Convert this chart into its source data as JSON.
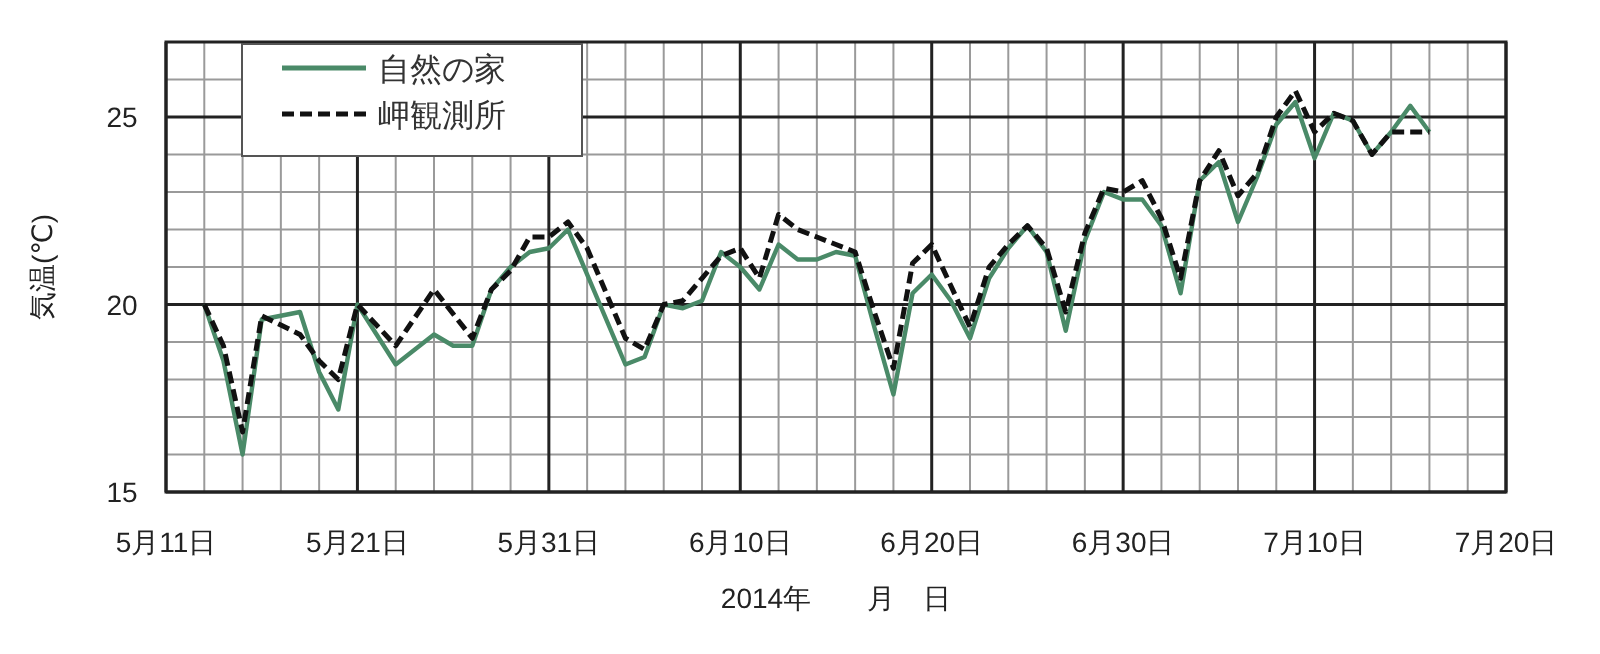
{
  "chart_data": {
    "type": "line",
    "ylabel": "気温(℃)",
    "xlabel": "2014年　　月　日",
    "xlim": [
      "2014-05-11",
      "2014-07-20"
    ],
    "xticks": [
      {
        "value": "2014-05-11",
        "label": "5月11日"
      },
      {
        "value": "2014-05-21",
        "label": "5月21日"
      },
      {
        "value": "2014-05-31",
        "label": "5月31日"
      },
      {
        "value": "2014-06-10",
        "label": "6月10日"
      },
      {
        "value": "2014-06-20",
        "label": "6月20日"
      },
      {
        "value": "2014-06-30",
        "label": "6月30日"
      },
      {
        "value": "2014-07-10",
        "label": "7月10日"
      },
      {
        "value": "2014-07-20",
        "label": "7月20日"
      }
    ],
    "ylim": [
      15,
      27
    ],
    "yticks": [
      15,
      20,
      25
    ],
    "grid": true,
    "legend": "top left",
    "series": [
      {
        "name": "自然の家",
        "color": "#4a8a68",
        "line_style": "solid",
        "x": [
          "2014-05-13",
          "2014-05-14",
          "2014-05-15",
          "2014-05-16",
          "2014-05-18",
          "2014-05-19",
          "2014-05-20",
          "2014-05-21",
          "2014-05-23",
          "2014-05-25",
          "2014-05-26",
          "2014-05-27",
          "2014-05-28",
          "2014-05-29",
          "2014-05-30",
          "2014-05-31",
          "2014-06-01",
          "2014-06-04",
          "2014-06-05",
          "2014-06-06",
          "2014-06-07",
          "2014-06-08",
          "2014-06-09",
          "2014-06-10",
          "2014-06-11",
          "2014-06-12",
          "2014-06-13",
          "2014-06-14",
          "2014-06-15",
          "2014-06-16",
          "2014-06-17",
          "2014-06-18",
          "2014-06-19",
          "2014-06-20",
          "2014-06-21",
          "2014-06-22",
          "2014-06-23",
          "2014-06-24",
          "2014-06-25",
          "2014-06-26",
          "2014-06-27",
          "2014-06-28",
          "2014-06-29",
          "2014-06-30",
          "2014-07-01",
          "2014-07-02",
          "2014-07-03",
          "2014-07-04",
          "2014-07-05",
          "2014-07-06",
          "2014-07-07",
          "2014-07-08",
          "2014-07-09",
          "2014-07-10",
          "2014-07-11",
          "2014-07-12",
          "2014-07-13",
          "2014-07-14",
          "2014-07-15",
          "2014-07-16"
        ],
        "values": [
          20.0,
          18.5,
          16.0,
          19.6,
          19.8,
          18.2,
          17.2,
          20.0,
          18.4,
          19.2,
          18.9,
          18.9,
          20.4,
          21.0,
          21.4,
          21.5,
          22.0,
          18.4,
          18.6,
          20.0,
          19.9,
          20.1,
          21.4,
          21.0,
          20.4,
          21.6,
          21.2,
          21.2,
          21.4,
          21.3,
          19.4,
          17.6,
          20.3,
          20.8,
          20.1,
          19.1,
          20.7,
          21.5,
          22.1,
          21.4,
          19.3,
          21.7,
          23.0,
          22.8,
          22.8,
          22.1,
          20.3,
          23.3,
          23.8,
          22.2,
          23.4,
          24.8,
          25.4,
          23.9,
          25.1,
          24.9,
          24.0,
          24.6,
          25.3,
          24.6
        ]
      },
      {
        "name": "岬観測所",
        "color": "#111111",
        "line_style": "dashed",
        "x": [
          "2014-05-13",
          "2014-05-14",
          "2014-05-15",
          "2014-05-16",
          "2014-05-18",
          "2014-05-19",
          "2014-05-20",
          "2014-05-21",
          "2014-05-23",
          "2014-05-25",
          "2014-05-27",
          "2014-05-28",
          "2014-05-29",
          "2014-05-30",
          "2014-05-31",
          "2014-06-01",
          "2014-06-02",
          "2014-06-04",
          "2014-06-05",
          "2014-06-06",
          "2014-06-07",
          "2014-06-08",
          "2014-06-09",
          "2014-06-10",
          "2014-06-11",
          "2014-06-12",
          "2014-06-13",
          "2014-06-14",
          "2014-06-15",
          "2014-06-16",
          "2014-06-17",
          "2014-06-18",
          "2014-06-19",
          "2014-06-20",
          "2014-06-21",
          "2014-06-22",
          "2014-06-23",
          "2014-06-24",
          "2014-06-25",
          "2014-06-26",
          "2014-06-27",
          "2014-06-28",
          "2014-06-29",
          "2014-06-30",
          "2014-07-01",
          "2014-07-02",
          "2014-07-03",
          "2014-07-04",
          "2014-07-05",
          "2014-07-06",
          "2014-07-07",
          "2014-07-08",
          "2014-07-09",
          "2014-07-10",
          "2014-07-11",
          "2014-07-12",
          "2014-07-13",
          "2014-07-14",
          "2014-07-15",
          "2014-07-16"
        ],
        "values": [
          20.0,
          18.9,
          16.6,
          19.7,
          19.2,
          18.5,
          18.0,
          20.0,
          18.9,
          20.4,
          19.1,
          20.4,
          20.9,
          21.8,
          21.8,
          22.2,
          21.5,
          19.1,
          18.8,
          20.0,
          20.1,
          20.7,
          21.3,
          21.5,
          20.7,
          22.4,
          22.0,
          21.8,
          21.6,
          21.4,
          19.8,
          18.3,
          21.1,
          21.6,
          20.5,
          19.4,
          21.0,
          21.6,
          22.1,
          21.5,
          19.8,
          21.9,
          23.1,
          23.0,
          23.3,
          22.3,
          20.7,
          23.3,
          24.1,
          22.9,
          23.5,
          25.0,
          25.7,
          24.6,
          25.1,
          24.9,
          24.0,
          24.6,
          24.6,
          24.6
        ]
      }
    ]
  }
}
